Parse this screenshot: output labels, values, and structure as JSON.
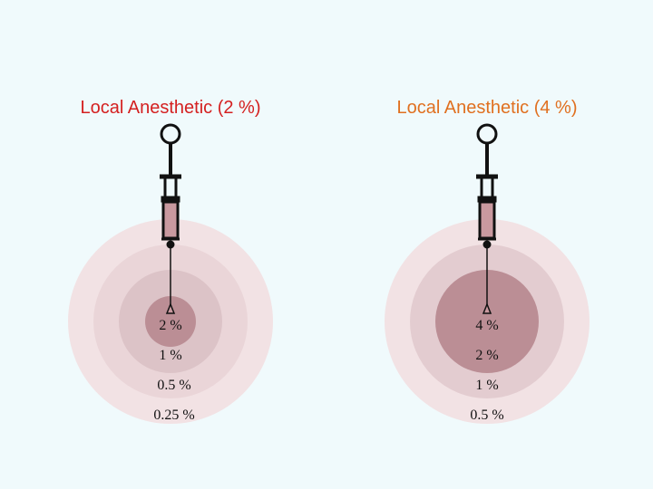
{
  "panels": [
    {
      "title": "Local Anesthetic (2 %)",
      "labels": [
        "2 %",
        "1 %",
        "0.5 %",
        "0.25 %"
      ]
    },
    {
      "title": "Local Anesthetic (4 %)",
      "labels": [
        "4 %",
        "2 %",
        "1 %",
        "0.5 %"
      ]
    }
  ]
}
